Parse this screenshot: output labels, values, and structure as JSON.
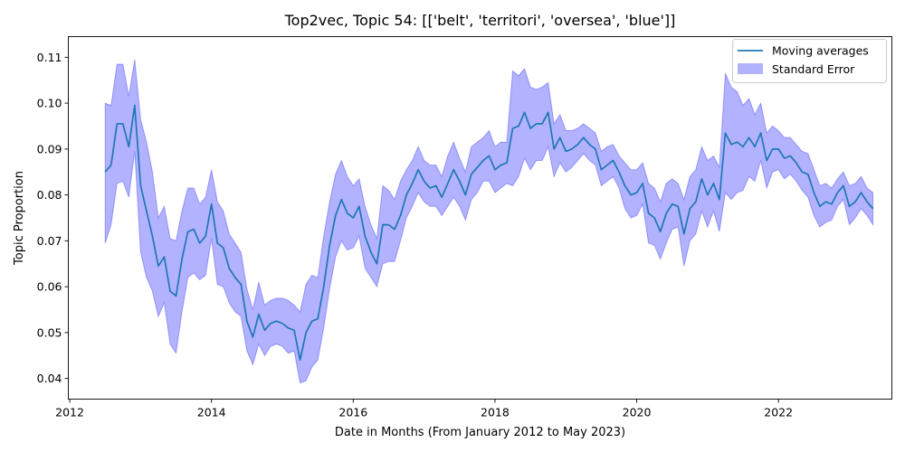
{
  "chart_data": {
    "type": "line",
    "title": "Top2vec, Topic 54: [['belt', 'territori', 'oversea', 'blue']]",
    "xlabel": "Date in Months (From January 2012 to May 2023)",
    "ylabel": "Topic Proportion",
    "xlim": [
      2011.98,
      2023.6
    ],
    "ylim": [
      0.0355,
      0.1145
    ],
    "x_ticks": [
      2012,
      2014,
      2016,
      2018,
      2020,
      2022
    ],
    "y_ticks": [
      0.04,
      0.05,
      0.06,
      0.07,
      0.08,
      0.09,
      0.1,
      0.11
    ],
    "y_tick_labels": [
      "0.04",
      "0.05",
      "0.06",
      "0.07",
      "0.08",
      "0.09",
      "0.10",
      "0.11"
    ],
    "grid": false,
    "legend_position": "top-right",
    "colors": {
      "line": "#1f77b4",
      "band": "#0000ff",
      "band_opacity": 0.3
    },
    "x_start": 2012.5,
    "x_step_months": 1,
    "series": [
      {
        "name": "Moving averages",
        "kind": "line",
        "values": [
          0.085,
          0.0865,
          0.0955,
          0.0955,
          0.0905,
          0.0995,
          0.082,
          0.0765,
          0.071,
          0.0645,
          0.0665,
          0.059,
          0.058,
          0.066,
          0.072,
          0.0725,
          0.0695,
          0.071,
          0.078,
          0.0695,
          0.0685,
          0.064,
          0.062,
          0.0605,
          0.0525,
          0.049,
          0.054,
          0.0505,
          0.052,
          0.0525,
          0.052,
          0.051,
          0.0505,
          0.044,
          0.05,
          0.0525,
          0.053,
          0.06,
          0.069,
          0.0755,
          0.079,
          0.076,
          0.075,
          0.0775,
          0.071,
          0.0675,
          0.065,
          0.0735,
          0.0735,
          0.0725,
          0.0755,
          0.08,
          0.0825,
          0.0855,
          0.083,
          0.0815,
          0.082,
          0.0795,
          0.0825,
          0.0855,
          0.083,
          0.08,
          0.0845,
          0.086,
          0.0875,
          0.0885,
          0.0855,
          0.0865,
          0.087,
          0.0945,
          0.095,
          0.098,
          0.0945,
          0.0955,
          0.0955,
          0.098,
          0.09,
          0.0925,
          0.0895,
          0.09,
          0.091,
          0.0925,
          0.091,
          0.09,
          0.0855,
          0.0865,
          0.0875,
          0.085,
          0.082,
          0.08,
          0.0805,
          0.0825,
          0.076,
          0.075,
          0.072,
          0.076,
          0.078,
          0.0775,
          0.0715,
          0.077,
          0.0785,
          0.0835,
          0.08,
          0.0825,
          0.079,
          0.0935,
          0.091,
          0.0915,
          0.0905,
          0.0925,
          0.0905,
          0.0935,
          0.0875,
          0.09,
          0.09,
          0.088,
          0.0885,
          0.087,
          0.085,
          0.0845,
          0.0805,
          0.0775,
          0.0785,
          0.078,
          0.0805,
          0.082,
          0.0775,
          0.0785,
          0.0805,
          0.0785,
          0.077
        ]
      },
      {
        "name": "Standard Error",
        "kind": "band",
        "upper": [
          0.1,
          0.0995,
          0.1085,
          0.1085,
          0.1015,
          0.1095,
          0.0965,
          0.0915,
          0.085,
          0.075,
          0.0775,
          0.0705,
          0.07,
          0.0765,
          0.0815,
          0.0815,
          0.078,
          0.0795,
          0.0855,
          0.0785,
          0.0765,
          0.0715,
          0.0695,
          0.0675,
          0.0595,
          0.055,
          0.061,
          0.056,
          0.057,
          0.0575,
          0.0575,
          0.057,
          0.056,
          0.0545,
          0.0605,
          0.0625,
          0.062,
          0.071,
          0.0785,
          0.0845,
          0.0875,
          0.084,
          0.082,
          0.0835,
          0.0775,
          0.0735,
          0.0705,
          0.082,
          0.081,
          0.079,
          0.083,
          0.0855,
          0.0875,
          0.0905,
          0.0875,
          0.0865,
          0.0865,
          0.084,
          0.0885,
          0.0915,
          0.088,
          0.085,
          0.0905,
          0.0915,
          0.0925,
          0.094,
          0.0905,
          0.0915,
          0.0915,
          0.107,
          0.106,
          0.1075,
          0.1035,
          0.103,
          0.1035,
          0.1045,
          0.0955,
          0.0975,
          0.094,
          0.094,
          0.0945,
          0.0955,
          0.0945,
          0.0935,
          0.0895,
          0.0905,
          0.091,
          0.0885,
          0.087,
          0.0855,
          0.0855,
          0.087,
          0.0825,
          0.0815,
          0.0785,
          0.0825,
          0.0835,
          0.0825,
          0.079,
          0.084,
          0.0855,
          0.0905,
          0.0875,
          0.0885,
          0.086,
          0.1065,
          0.1035,
          0.1025,
          0.0995,
          0.101,
          0.0975,
          0.1,
          0.0935,
          0.095,
          0.094,
          0.0925,
          0.0925,
          0.091,
          0.0895,
          0.089,
          0.0855,
          0.082,
          0.0825,
          0.0815,
          0.0835,
          0.085,
          0.082,
          0.0825,
          0.084,
          0.0815,
          0.0805
        ],
        "lower": [
          0.0695,
          0.0735,
          0.0825,
          0.083,
          0.0795,
          0.0895,
          0.0675,
          0.062,
          0.059,
          0.0535,
          0.0565,
          0.0475,
          0.0455,
          0.0545,
          0.062,
          0.063,
          0.0615,
          0.0625,
          0.0705,
          0.0605,
          0.06,
          0.0565,
          0.0545,
          0.0535,
          0.046,
          0.043,
          0.0475,
          0.045,
          0.047,
          0.0475,
          0.047,
          0.0455,
          0.046,
          0.039,
          0.0395,
          0.0425,
          0.044,
          0.051,
          0.0595,
          0.0665,
          0.07,
          0.068,
          0.0685,
          0.071,
          0.064,
          0.062,
          0.06,
          0.065,
          0.0655,
          0.0655,
          0.07,
          0.075,
          0.0775,
          0.0805,
          0.0785,
          0.0775,
          0.0775,
          0.0755,
          0.0775,
          0.0795,
          0.0775,
          0.0745,
          0.079,
          0.0805,
          0.083,
          0.083,
          0.0805,
          0.0815,
          0.0825,
          0.082,
          0.084,
          0.088,
          0.0855,
          0.0875,
          0.0875,
          0.0905,
          0.084,
          0.087,
          0.085,
          0.086,
          0.0875,
          0.089,
          0.0875,
          0.0865,
          0.082,
          0.083,
          0.084,
          0.0815,
          0.077,
          0.075,
          0.0755,
          0.078,
          0.0695,
          0.069,
          0.066,
          0.0695,
          0.0725,
          0.073,
          0.0645,
          0.07,
          0.0715,
          0.0765,
          0.073,
          0.0765,
          0.072,
          0.0805,
          0.079,
          0.0805,
          0.081,
          0.084,
          0.083,
          0.0875,
          0.0815,
          0.085,
          0.0855,
          0.0835,
          0.0845,
          0.083,
          0.081,
          0.0795,
          0.0755,
          0.073,
          0.074,
          0.0745,
          0.0775,
          0.079,
          0.0735,
          0.075,
          0.077,
          0.0755,
          0.0735
        ]
      }
    ]
  }
}
